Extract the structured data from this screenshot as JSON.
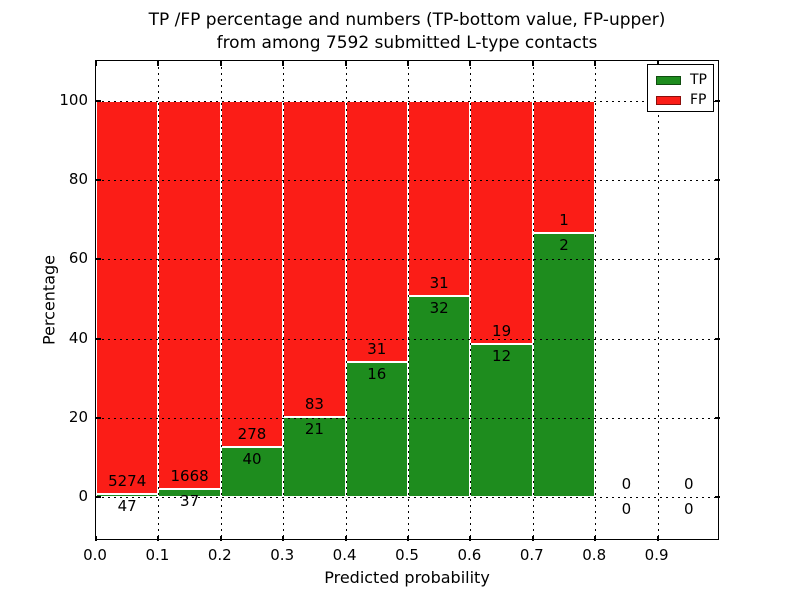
{
  "title": {
    "line1": "TP /FP percentage and numbers (TP-bottom value, FP-upper)",
    "line2": "from among 7592 submitted L-type contacts"
  },
  "axes": {
    "xlabel": "Predicted probability",
    "ylabel": "Percentage"
  },
  "chart_data": {
    "type": "bar",
    "stacked": true,
    "note": "Stacked TP/FP bars normalized to 100% of each bin; data labels show raw counts (TP below boundary, FP above)",
    "title": "TP /FP percentage and numbers (TP-bottom value, FP-upper) from among 7592 submitted L-type contacts",
    "xlabel": "Predicted probability",
    "ylabel": "Percentage",
    "xlim": [
      0.0,
      1.0
    ],
    "ylim": [
      -11,
      110
    ],
    "bin_width": 0.1,
    "bin_starts": [
      0.0,
      0.1,
      0.2,
      0.3,
      0.4,
      0.5,
      0.6,
      0.7,
      0.8,
      0.9
    ],
    "xtick_values": [
      0.0,
      0.1,
      0.2,
      0.3,
      0.4,
      0.5,
      0.6,
      0.7,
      0.8,
      0.9
    ],
    "xtick_labels": [
      "0.0",
      "0.1",
      "0.2",
      "0.3",
      "0.4",
      "0.5",
      "0.6",
      "0.7",
      "0.8",
      "0.9"
    ],
    "ytick_values": [
      0,
      20,
      40,
      60,
      80,
      100
    ],
    "ytick_labels": [
      "0",
      "20",
      "40",
      "60",
      "80",
      "100"
    ],
    "grid": "dotted black, on",
    "legend_position": "upper right",
    "series": [
      {
        "name": "TP",
        "color": "#1e8c1e",
        "counts": [
          47,
          37,
          40,
          21,
          16,
          32,
          12,
          2,
          0,
          0
        ]
      },
      {
        "name": "FP",
        "color": "#fb1d17",
        "counts": [
          5274,
          1668,
          278,
          83,
          31,
          31,
          19,
          1,
          0,
          0
        ]
      }
    ],
    "tp_percent_of_bin": [
      0.88,
      2.17,
      12.58,
      20.19,
      34.04,
      50.79,
      38.71,
      66.67,
      0,
      0
    ],
    "total_contacts": 7592
  }
}
